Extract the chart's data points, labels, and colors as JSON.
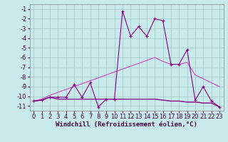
{
  "x": [
    0,
    1,
    2,
    3,
    4,
    5,
    6,
    7,
    8,
    9,
    10,
    11,
    12,
    13,
    14,
    15,
    16,
    17,
    18,
    19,
    20,
    21,
    22,
    23
  ],
  "line1": [
    -10.5,
    -10.4,
    -10.1,
    -10.1,
    -10.1,
    -8.8,
    -10.1,
    -8.6,
    -11.1,
    -10.3,
    -10.3,
    -1.2,
    -3.8,
    -2.8,
    -3.8,
    -2.0,
    -2.2,
    -6.7,
    -6.7,
    -5.2,
    -10.4,
    -9.0,
    -10.5,
    -11.1
  ],
  "line2": [
    -10.5,
    -10.4,
    -10.1,
    -10.3,
    -10.3,
    -10.3,
    -10.3,
    -10.3,
    -10.3,
    -10.3,
    -10.3,
    -10.3,
    -10.3,
    -10.3,
    -10.3,
    -10.3,
    -10.4,
    -10.5,
    -10.5,
    -10.6,
    -10.6,
    -10.7,
    -10.7,
    -11.1
  ],
  "line3": [
    -10.5,
    -10.3,
    -9.9,
    -9.6,
    -9.3,
    -9.0,
    -8.7,
    -8.4,
    -8.1,
    -7.8,
    -7.5,
    -7.2,
    -6.9,
    -6.6,
    -6.3,
    -6.0,
    -6.4,
    -6.7,
    -6.7,
    -6.5,
    -7.8,
    -8.2,
    -8.6,
    -9.0
  ],
  "bg_color": "#c8eaea",
  "grid_color": "#a0c8c8",
  "line_color1": "#880088",
  "line_color2": "#880088",
  "line_color3": "#cc44cc",
  "xlabel": "Windchill (Refroidissement éolien,°C)",
  "ylim": [
    -11.5,
    -0.5
  ],
  "xlim": [
    -0.5,
    23.5
  ],
  "yticks": [
    -11,
    -10,
    -9,
    -8,
    -7,
    -6,
    -5,
    -4,
    -3,
    -2,
    -1
  ],
  "xticks": [
    0,
    1,
    2,
    3,
    4,
    5,
    6,
    7,
    8,
    9,
    10,
    11,
    12,
    13,
    14,
    15,
    16,
    17,
    18,
    19,
    20,
    21,
    22,
    23
  ],
  "xlabel_fontsize": 6.5,
  "tick_fontsize": 6.0
}
